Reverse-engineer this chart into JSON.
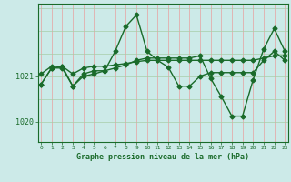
{
  "xlabel": "Graphe pression niveau de la mer (hPa)",
  "background_color": "#cceae8",
  "line_color": "#1a6b2a",
  "grid_color_v": "#e8a0a0",
  "grid_color_h": "#a8cca8",
  "yticks": [
    1020,
    1021
  ],
  "xticks": [
    0,
    1,
    2,
    3,
    4,
    5,
    6,
    7,
    8,
    9,
    10,
    11,
    12,
    13,
    14,
    15,
    16,
    17,
    18,
    19,
    20,
    21,
    22,
    23
  ],
  "ylim": [
    1019.55,
    1022.6
  ],
  "xlim": [
    -0.3,
    23.3
  ],
  "line1_x": [
    0,
    1,
    2,
    3,
    4,
    5,
    6,
    7,
    8,
    9,
    10,
    11,
    12,
    13,
    14,
    15,
    16,
    17,
    18,
    19,
    20,
    21,
    22,
    23
  ],
  "line1_y": [
    1020.82,
    1021.18,
    1021.18,
    1020.78,
    1021.05,
    1021.12,
    1021.12,
    1021.55,
    1022.1,
    1022.35,
    1021.55,
    1021.35,
    1021.2,
    1020.78,
    1020.78,
    1021.0,
    1021.08,
    1021.08,
    1021.08,
    1021.08,
    1021.08,
    1021.35,
    1021.55,
    1021.35
  ],
  "line2_x": [
    0,
    1,
    2,
    3,
    4,
    5,
    6,
    7,
    8,
    9,
    10,
    11,
    12,
    13,
    14,
    15,
    16,
    17,
    18,
    19,
    20,
    21,
    22,
    23
  ],
  "line2_y": [
    1021.05,
    1021.22,
    1021.22,
    1021.05,
    1021.18,
    1021.22,
    1021.22,
    1021.25,
    1021.28,
    1021.32,
    1021.35,
    1021.35,
    1021.35,
    1021.35,
    1021.35,
    1021.35,
    1021.35,
    1021.35,
    1021.35,
    1021.35,
    1021.35,
    1021.4,
    1021.45,
    1021.45
  ],
  "line3_x": [
    0,
    1,
    2,
    3,
    4,
    5,
    6,
    7,
    8,
    9,
    10,
    11,
    12,
    13,
    14,
    15,
    16,
    17,
    18,
    19,
    20,
    21,
    22,
    23
  ],
  "line3_y": [
    1020.82,
    1021.18,
    1021.22,
    1020.78,
    1021.0,
    1021.05,
    1021.12,
    1021.18,
    1021.25,
    1021.35,
    1021.4,
    1021.4,
    1021.4,
    1021.4,
    1021.4,
    1021.45,
    1020.95,
    1020.55,
    1020.12,
    1020.12,
    1020.92,
    1021.6,
    1022.05,
    1021.55
  ],
  "marker": "D",
  "markersize": 2.5,
  "linewidth": 1.0
}
